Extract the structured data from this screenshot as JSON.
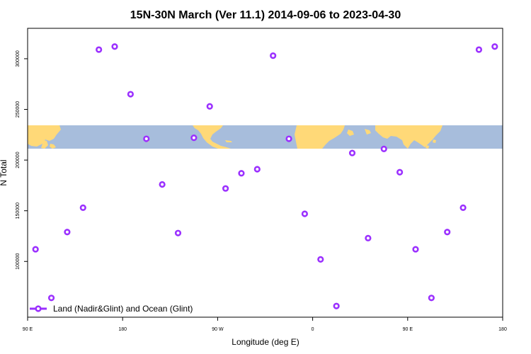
{
  "chart_data": {
    "type": "scatter",
    "title": "15N-30N March (Ver 11.1)   2014-09-06 to 2023-04-30",
    "xlabel": "Longitude (deg E)",
    "ylabel": "N Total",
    "x_ticks": [
      {
        "value": 90,
        "label": "90 E"
      },
      {
        "value": 180,
        "label": "180"
      },
      {
        "value": 270,
        "label": "90 W"
      },
      {
        "value": 360,
        "label": "0"
      },
      {
        "value": 450,
        "label": "90 E"
      },
      {
        "value": 540,
        "label": "180"
      }
    ],
    "y_ticks": [
      {
        "value": 100000,
        "label": "100000"
      },
      {
        "value": 150000,
        "label": "150000"
      },
      {
        "value": 200000,
        "label": "200000"
      },
      {
        "value": 250000,
        "label": "250000"
      },
      {
        "value": 300000,
        "label": "300000"
      }
    ],
    "xlim": [
      90,
      540
    ],
    "ylim": [
      45000,
      330000
    ],
    "series": [
      {
        "name": "Land (Nadir&Glint) and Ocean (Glint)",
        "color": "#9B30FF",
        "x": [
          97.5,
          112.5,
          127.5,
          142.5,
          157.5,
          172.5,
          187.5,
          202.5,
          217.5,
          232.5,
          247.5,
          262.5,
          277.5,
          292.5,
          307.5,
          322.5,
          337.5,
          352.5,
          367.5,
          382.5,
          397.5,
          412.5,
          427.5,
          442.5,
          457.5,
          472.5,
          487.5,
          502.5,
          517.5,
          532.5
        ],
        "y": [
          112000,
          64000,
          129000,
          153000,
          309000,
          312000,
          265000,
          221000,
          176000,
          128000,
          222000,
          253000,
          172000,
          187000,
          191000,
          303000,
          221000,
          147000,
          102000,
          56000,
          207000,
          123000,
          211000,
          188000,
          112000,
          64000,
          129000,
          153000,
          309000,
          312000
        ]
      }
    ],
    "map_band": {
      "description": "world map strip",
      "ocean_color": "#A7BDDC",
      "land_color": "#FFD978"
    },
    "legend": {
      "position": "bottom-left"
    }
  }
}
